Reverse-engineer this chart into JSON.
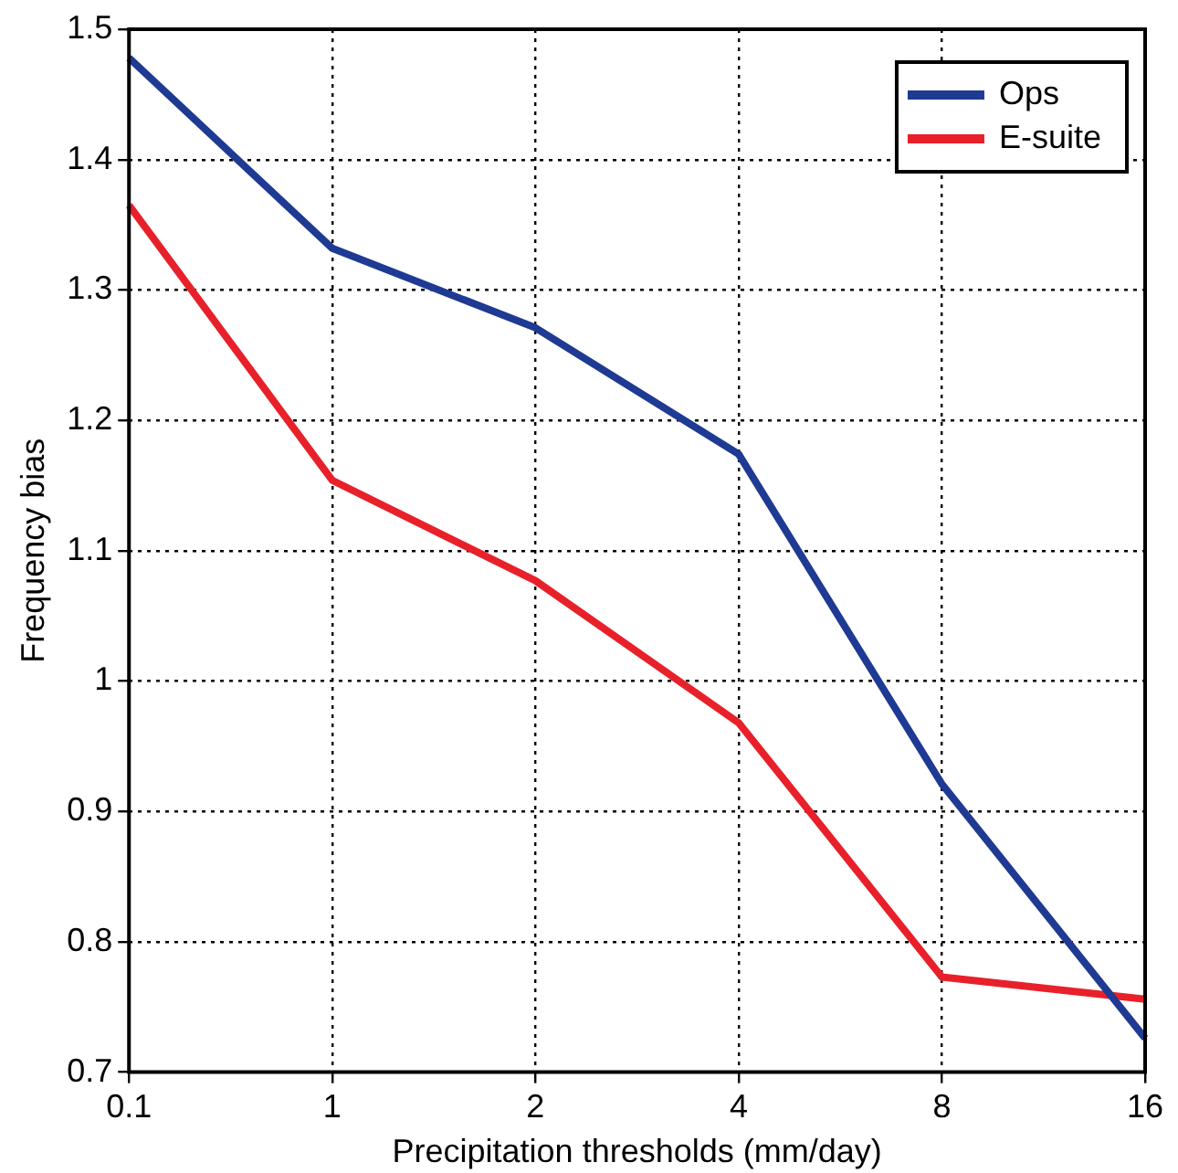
{
  "chart_data": {
    "type": "line",
    "xlabel": "Precipitation thresholds (mm/day)",
    "ylabel": "Frequency bias",
    "categories": [
      "0.1",
      "1",
      "2",
      "4",
      "8",
      "16"
    ],
    "series": [
      {
        "name": "Ops",
        "color": "#1f3a93",
        "values": [
          1.478,
          1.332,
          1.271,
          1.174,
          0.921,
          0.726
        ]
      },
      {
        "name": "E-suite",
        "color": "#e8202a",
        "values": [
          1.365,
          1.154,
          1.077,
          0.968,
          0.773,
          0.756
        ]
      }
    ],
    "ylim": [
      0.7,
      1.5
    ],
    "yticks": [
      0.7,
      0.8,
      0.9,
      1,
      1.1,
      1.2,
      1.3,
      1.4,
      1.5
    ],
    "grid": true,
    "legend": "top right",
    "marker": "none",
    "line_style": "solid"
  }
}
